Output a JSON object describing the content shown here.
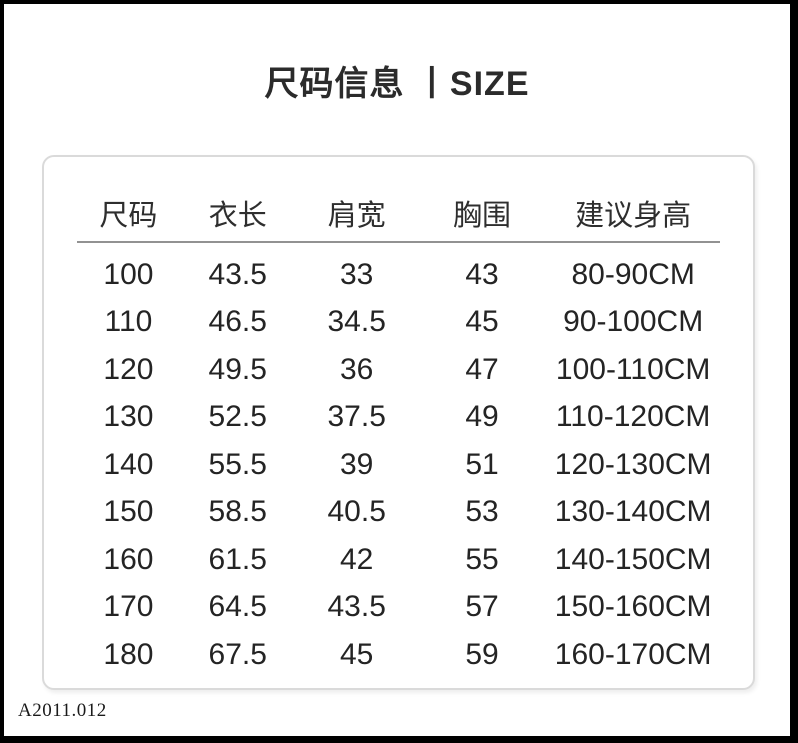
{
  "title": {
    "text": "尺码信息 丨SIZE"
  },
  "chart_data": {
    "type": "table",
    "title": "尺码信息 丨SIZE",
    "headers": [
      "尺码",
      "衣长",
      "肩宽",
      "胸围",
      "建议身高"
    ],
    "rows": [
      [
        "100",
        "43.5",
        "33",
        "43",
        "80-90CM"
      ],
      [
        "110",
        "46.5",
        "34.5",
        "45",
        "90-100CM"
      ],
      [
        "120",
        "49.5",
        "36",
        "47",
        "100-110CM"
      ],
      [
        "130",
        "52.5",
        "37.5",
        "49",
        "110-120CM"
      ],
      [
        "140",
        "55.5",
        "39",
        "51",
        "120-130CM"
      ],
      [
        "150",
        "58.5",
        "40.5",
        "53",
        "130-140CM"
      ],
      [
        "160",
        "61.5",
        "42",
        "55",
        "140-150CM"
      ],
      [
        "170",
        "64.5",
        "43.5",
        "57",
        "150-160CM"
      ],
      [
        "180",
        "67.5",
        "45",
        "59",
        "160-170CM"
      ]
    ]
  },
  "footer": {
    "code": "A2011.012"
  },
  "colors": {
    "frame": "#000000",
    "background": "#ffffff",
    "text": "#262626",
    "panel_border": "#dadada",
    "divider": "#929292"
  }
}
